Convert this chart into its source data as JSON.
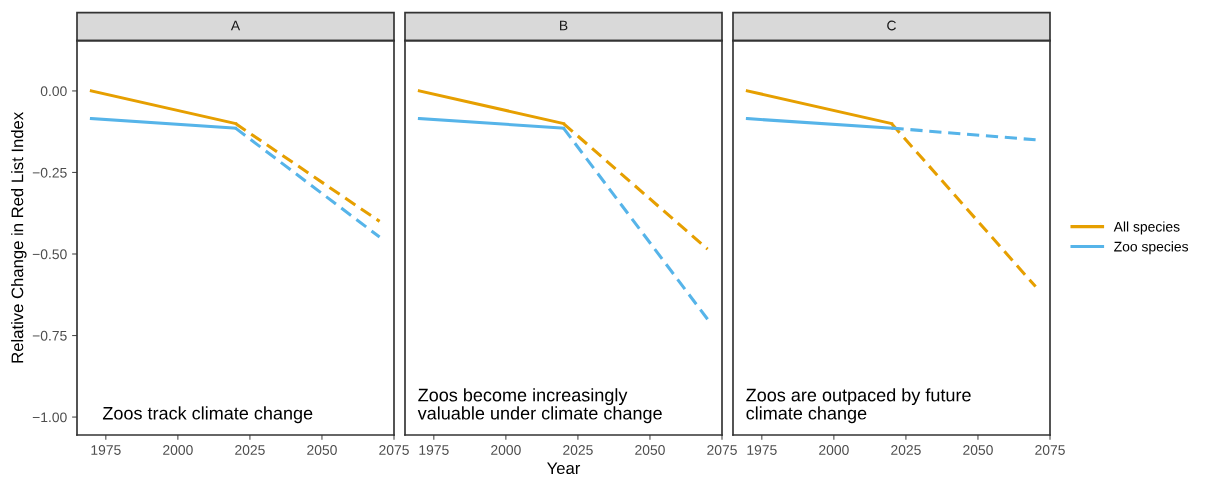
{
  "chart_data": [
    {
      "type": "line",
      "title": "A",
      "ylabel": "Relative Change in Red List Index",
      "xlim": [
        1965,
        2075
      ],
      "xticks": [
        1975,
        2000,
        2025,
        2050,
        2075
      ],
      "ylim": [
        -1.055,
        0.154
      ],
      "yticks": [
        {
          "value": 0,
          "label": "0.00"
        },
        {
          "value": -0.25,
          "label": "−0.25"
        },
        {
          "value": -0.5,
          "label": "−0.50"
        },
        {
          "value": -0.75,
          "label": "−0.75"
        },
        {
          "value": -1,
          "label": "−1.00"
        }
      ],
      "grid": false,
      "legend": false,
      "annotations": [
        "Zoos track climate change"
      ],
      "series": [
        {
          "color": "#e69f00",
          "line_style": "solid",
          "x": [
            1970,
            2020
          ],
          "values": [
            0.0,
            -0.1
          ]
        },
        {
          "color": "#56b4e9",
          "line_style": "solid",
          "x": [
            1970,
            2020
          ],
          "values": [
            -0.085,
            -0.114
          ]
        },
        {
          "color": "#e69f00",
          "line_style": "dashed",
          "x": [
            2020,
            2070
          ],
          "values": [
            -0.1,
            -0.4
          ]
        },
        {
          "color": "#56b4e9",
          "line_style": "dashed",
          "x": [
            2020,
            2070
          ],
          "values": [
            -0.114,
            -0.448
          ]
        }
      ]
    },
    {
      "type": "line",
      "title": "B",
      "xlabel": "Year",
      "xlim": [
        1965,
        2075
      ],
      "xticks": [
        1975,
        2000,
        2025,
        2050,
        2075
      ],
      "ylim": [
        -1.055,
        0.154
      ],
      "tick_labels": "x",
      "grid": false,
      "legend": false,
      "annotations": [
        "Zoos become increasingly\nvaluable under climate change"
      ],
      "series": [
        {
          "color": "#e69f00",
          "line_style": "solid",
          "x": [
            1970,
            2020
          ],
          "values": [
            0.0,
            -0.1
          ]
        },
        {
          "color": "#56b4e9",
          "line_style": "solid",
          "x": [
            1970,
            2020
          ],
          "values": [
            -0.085,
            -0.114
          ]
        },
        {
          "color": "#e69f00",
          "line_style": "dashed",
          "x": [
            2020,
            2070
          ],
          "values": [
            -0.1,
            -0.485
          ]
        },
        {
          "color": "#56b4e9",
          "line_style": "dashed",
          "x": [
            2020,
            2070
          ],
          "values": [
            -0.114,
            -0.7
          ]
        }
      ]
    },
    {
      "type": "line",
      "title": "C",
      "xlim": [
        1965,
        2075
      ],
      "xticks": [
        1975,
        2000,
        2025,
        2050,
        2075
      ],
      "ylim": [
        -1.055,
        0.154
      ],
      "tick_labels": "x",
      "grid": false,
      "legend": "right",
      "annotations": [
        "Zoos are outpaced by future\nclimate change"
      ],
      "series": [
        {
          "name": "All species",
          "color": "#e69f00",
          "line_style": "solid",
          "x": [
            1970,
            2020
          ],
          "values": [
            0.0,
            -0.1
          ]
        },
        {
          "name": "Zoo species",
          "color": "#56b4e9",
          "line_style": "solid",
          "x": [
            1970,
            2020
          ],
          "values": [
            -0.085,
            -0.114
          ]
        },
        {
          "color": "#e69f00",
          "line_style": "dashed",
          "x": [
            2020,
            2070
          ],
          "values": [
            -0.1,
            -0.6
          ]
        },
        {
          "color": "#56b4e9",
          "line_style": "dashed",
          "x": [
            2020,
            2070
          ],
          "values": [
            -0.114,
            -0.15
          ]
        }
      ]
    }
  ]
}
